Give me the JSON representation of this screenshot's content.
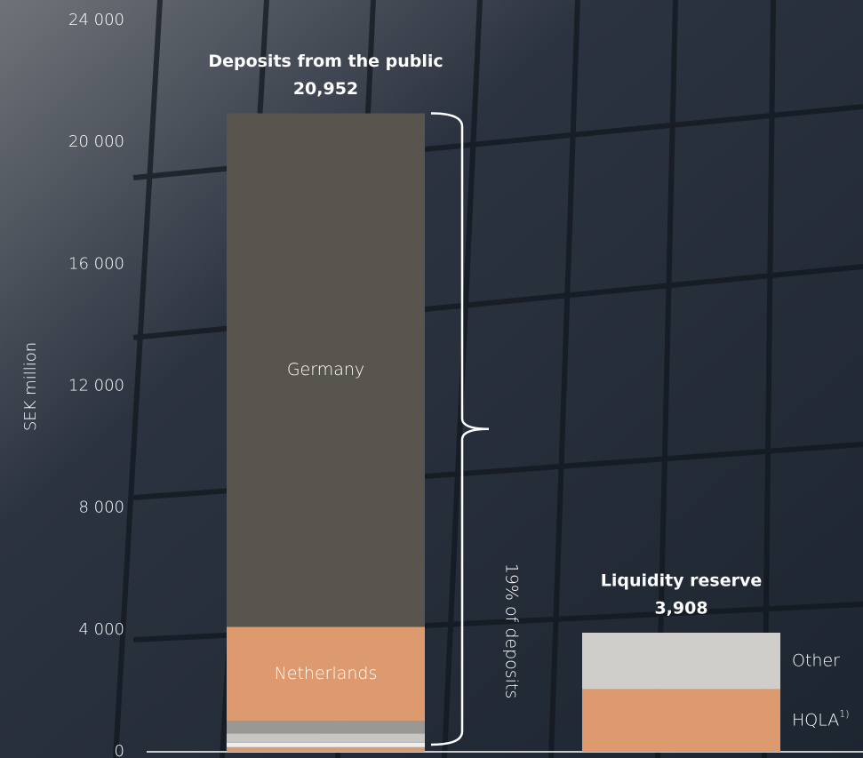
{
  "chart_data": {
    "type": "stacked-bar",
    "y_label": "SEK million",
    "ylim": [
      0,
      24000
    ],
    "yticks": [
      0,
      {
        "value": 4000,
        "label": "4 000"
      },
      {
        "value": 8000,
        "label": "8 000"
      },
      {
        "value": 12000,
        "label": "12 000"
      },
      {
        "value": 16000,
        "label": "16 000"
      },
      {
        "value": 20000,
        "label": "20 000"
      },
      {
        "value": 24000,
        "label": "24 000"
      }
    ],
    "annotation": "19% of deposits",
    "bars": [
      {
        "title": "Deposits from the public",
        "total": 20952,
        "total_label": "20,952",
        "segments": [
          {
            "name": null,
            "value": 150,
            "color": "#dd9a6e"
          },
          {
            "name": null,
            "value": 150,
            "color": "#f0efed"
          },
          {
            "name": null,
            "value": 300,
            "color": "#c8c6c2"
          },
          {
            "name": null,
            "value": 400,
            "color": "#9a9893"
          },
          {
            "name": "Netherlands",
            "value": 3100,
            "color": "#dd9a6e"
          },
          {
            "name": "Germany",
            "value": 16852,
            "color": "#58554f"
          }
        ]
      },
      {
        "title": "Liquidity reserve",
        "total": 3908,
        "total_label": "3,908",
        "segments": [
          {
            "name": "HQLA",
            "footnote": "1)",
            "value": 2050,
            "color": "#dd9a6e"
          },
          {
            "name": "Other",
            "value": 1858,
            "color": "#d0cecb"
          }
        ]
      }
    ]
  }
}
